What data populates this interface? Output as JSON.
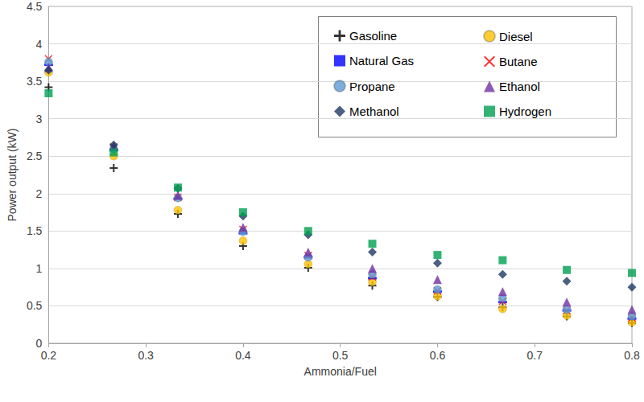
{
  "chart_data": {
    "type": "scatter",
    "x_label": "Ammonia/Fuel",
    "y_label": "Power output (kW)",
    "x": [
      0.2,
      0.267,
      0.333,
      0.4,
      0.467,
      0.533,
      0.6,
      0.667,
      0.733,
      0.8
    ],
    "series": [
      {
        "name": "Gasoline",
        "color": "#000000",
        "marker": "plus",
        "values": [
          3.42,
          2.34,
          1.73,
          1.3,
          1.01,
          0.77,
          0.62,
          0.48,
          0.36,
          0.27
        ]
      },
      {
        "name": "Diesel",
        "color": "#ffc000",
        "marker": "circle",
        "values": [
          3.62,
          2.5,
          1.78,
          1.37,
          1.06,
          0.82,
          0.63,
          0.46,
          0.37,
          0.28
        ]
      },
      {
        "name": "Natural Gas",
        "color": "#0000ff",
        "marker": "dash",
        "values": [
          3.72,
          2.58,
          1.93,
          1.47,
          1.15,
          0.87,
          0.69,
          0.55,
          0.44,
          0.33
        ]
      },
      {
        "name": "Butane",
        "color": "#ff0000",
        "marker": "x",
        "values": [
          3.8,
          2.62,
          1.95,
          1.52,
          1.17,
          0.89,
          0.7,
          0.56,
          0.44,
          0.34
        ]
      },
      {
        "name": "Propane",
        "color": "#5b9bd5",
        "marker": "circle",
        "values": [
          3.76,
          2.6,
          1.94,
          1.49,
          1.15,
          0.92,
          0.72,
          0.6,
          0.45,
          0.36
        ]
      },
      {
        "name": "Ethanol",
        "color": "#7030a0",
        "marker": "triangle",
        "values": [
          3.68,
          2.64,
          1.98,
          1.55,
          1.22,
          1.0,
          0.85,
          0.69,
          0.55,
          0.45
        ]
      },
      {
        "name": "Methanol",
        "color": "#1f3864",
        "marker": "diamond",
        "values": [
          3.65,
          2.65,
          2.07,
          1.7,
          1.45,
          1.22,
          1.07,
          0.92,
          0.83,
          0.75
        ]
      },
      {
        "name": "Hydrogen",
        "color": "#00a050",
        "marker": "square",
        "values": [
          3.34,
          2.55,
          2.08,
          1.75,
          1.5,
          1.33,
          1.18,
          1.11,
          0.98,
          0.94
        ]
      }
    ],
    "xlim": [
      0.2,
      0.8
    ],
    "xticks": [
      0.2,
      0.3,
      0.4,
      0.5,
      0.6,
      0.7,
      0.8
    ],
    "ylim": [
      0,
      4.5
    ],
    "yticks": [
      0,
      0.5,
      1,
      1.5,
      2,
      2.5,
      3,
      3.5,
      4,
      4.5
    ],
    "grid": true,
    "legend": "upper right"
  }
}
